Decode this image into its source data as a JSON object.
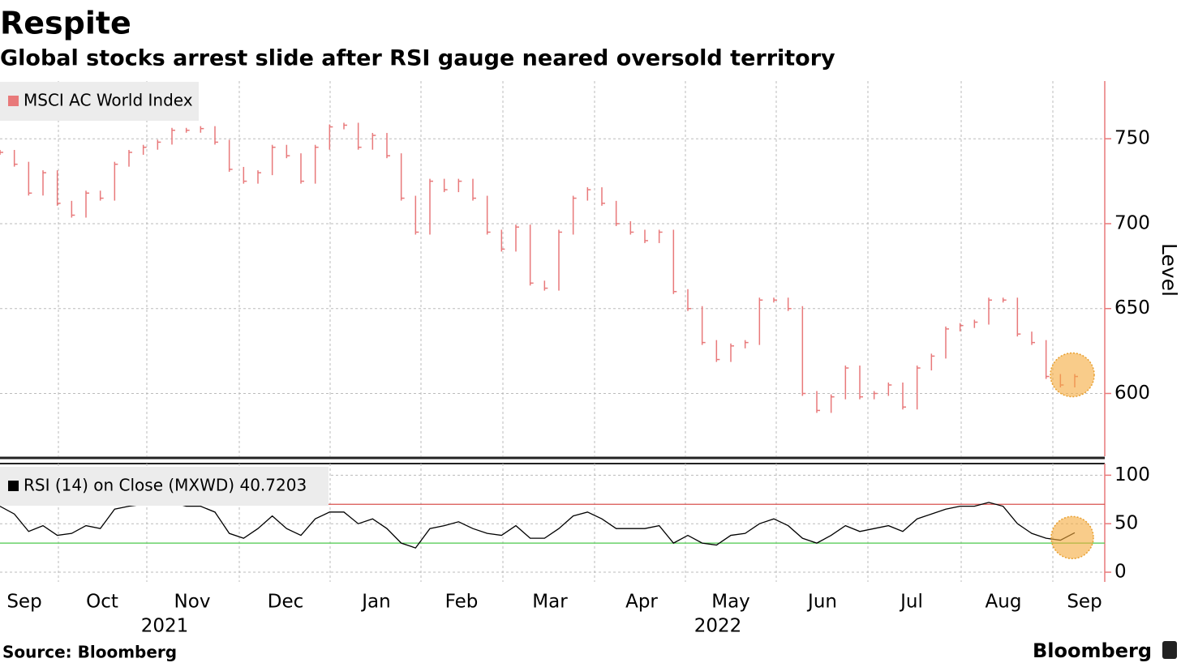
{
  "header": {
    "title": "Respite",
    "subtitle": "Global stocks arrest slide after RSI gauge neared oversold territory"
  },
  "x_axis": {
    "months": [
      "Sep",
      "Oct",
      "Nov",
      "Dec",
      "Jan",
      "Feb",
      "Mar",
      "Apr",
      "May",
      "Jun",
      "Jul",
      "Aug",
      "Sep"
    ],
    "years": [
      "2021",
      "2022"
    ]
  },
  "chart_data": [
    {
      "type": "bar",
      "legend": "MSCI AC World Index",
      "ylabel": "Level",
      "color": "#e8797a",
      "ylim": [
        563,
        784
      ],
      "yticks": [
        600,
        650,
        700,
        750
      ],
      "grid": true,
      "values": [
        742,
        735,
        718,
        730,
        712,
        705,
        718,
        715,
        735,
        742,
        745,
        748,
        755,
        755,
        756,
        748,
        732,
        725,
        730,
        745,
        740,
        725,
        745,
        757,
        758,
        745,
        752,
        740,
        715,
        695,
        725,
        720,
        725,
        715,
        695,
        685,
        698,
        665,
        662,
        695,
        715,
        720,
        712,
        700,
        695,
        690,
        695,
        660,
        650,
        630,
        620,
        628,
        630,
        655,
        655,
        650,
        600,
        590,
        598,
        615,
        598,
        600,
        605,
        592,
        615,
        622,
        638,
        640,
        642,
        655,
        655,
        635,
        630,
        610,
        605,
        610
      ]
    },
    {
      "type": "line",
      "legend": "RSI (14)  on Close (MXWD) 40.7203",
      "color": "#000000",
      "ylim": [
        -10,
        112
      ],
      "yticks": [
        0,
        50,
        100
      ],
      "grid": true,
      "reference_lines": [
        {
          "value": 70,
          "color": "#d9534f"
        },
        {
          "value": 30,
          "color": "#4cc94c"
        }
      ],
      "values": [
        68,
        60,
        42,
        48,
        38,
        40,
        48,
        45,
        65,
        68,
        70,
        72,
        72,
        68,
        68,
        62,
        40,
        35,
        45,
        58,
        45,
        38,
        55,
        62,
        62,
        50,
        55,
        45,
        30,
        25,
        45,
        48,
        52,
        45,
        40,
        38,
        48,
        35,
        35,
        45,
        58,
        62,
        55,
        45,
        45,
        45,
        48,
        30,
        38,
        30,
        28,
        38,
        40,
        50,
        55,
        48,
        35,
        30,
        38,
        48,
        42,
        45,
        48,
        42,
        55,
        60,
        65,
        68,
        68,
        72,
        68,
        50,
        40,
        35,
        33,
        40.72
      ]
    }
  ],
  "footer": {
    "source": "Source: Bloomberg",
    "brand": "Bloomberg"
  }
}
